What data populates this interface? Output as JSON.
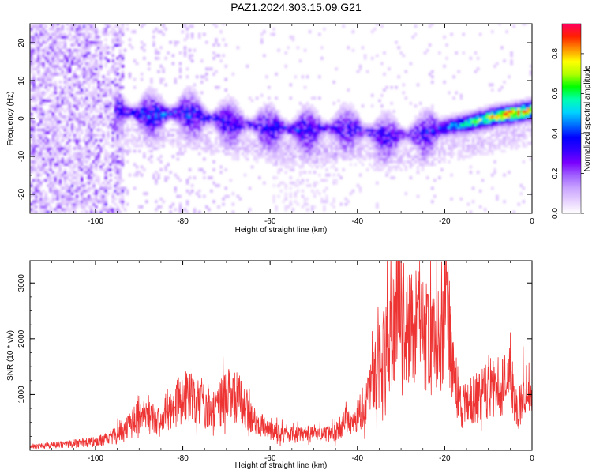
{
  "figure": {
    "title": "PAZ1.2024.303.15.09.G21"
  },
  "chart_data": [
    {
      "type": "heatmap",
      "xlabel": "Height of straight line (km)",
      "ylabel": "Frequency (Hz)",
      "xlim": [
        -115,
        0
      ],
      "ylim": [
        -25,
        25
      ],
      "xticks": [
        -100,
        -80,
        -60,
        -40,
        -20,
        0
      ],
      "yticks": [
        -20,
        -10,
        0,
        10,
        20
      ],
      "colorbar": {
        "label": "Normalized spectral amplitude",
        "range": [
          0,
          0.95
        ],
        "ticks": [
          0.0,
          0.2,
          0.4,
          0.6,
          0.8
        ],
        "colormap": [
          "#ffffff",
          "#e6d0ff",
          "#c9a4ff",
          "#a060ff",
          "#7a00ff",
          "#3300ff",
          "#0000ff",
          "#0070ff",
          "#00d4ff",
          "#00ffb0",
          "#00ff00",
          "#b0ff00",
          "#ffff00",
          "#ff9000",
          "#ff2000",
          "#ff0060"
        ]
      },
      "ridge": {
        "x": [
          -95,
          -90,
          -85,
          -80,
          -75,
          -70,
          -65,
          -60,
          -55,
          -50,
          -45,
          -40,
          -35,
          -30,
          -25,
          -20,
          -15,
          -10,
          -5,
          0
        ],
        "freq": [
          2,
          1,
          1,
          1.5,
          0,
          -1,
          -2,
          -2.5,
          -3,
          -3,
          -2.5,
          -3,
          -5,
          -4.5,
          -4,
          -2.5,
          -1.5,
          0,
          1,
          2
        ],
        "amplitude": [
          0.3,
          0.35,
          0.38,
          0.35,
          0.33,
          0.3,
          0.28,
          0.3,
          0.35,
          0.3,
          0.28,
          0.3,
          0.32,
          0.25,
          0.3,
          0.4,
          0.55,
          0.7,
          0.85,
          0.8
        ]
      }
    },
    {
      "type": "line",
      "xlabel": "Height of straight line (km)",
      "ylabel": "SNR (10 * v/v)",
      "xlim": [
        -115,
        0
      ],
      "ylim": [
        0,
        3400
      ],
      "xticks": [
        -100,
        -80,
        -60,
        -40,
        -20,
        0
      ],
      "yticks": [
        1000,
        2000,
        3000
      ],
      "color": "#ee3333",
      "series": {
        "x": [
          -115,
          -110,
          -105,
          -100,
          -97,
          -95,
          -93,
          -91,
          -89,
          -87,
          -85,
          -83,
          -81,
          -79,
          -77,
          -75,
          -73,
          -71,
          -69,
          -67,
          -65,
          -63,
          -61,
          -59,
          -57,
          -55,
          -53,
          -51,
          -49,
          -47,
          -45,
          -43,
          -41,
          -39,
          -37,
          -35,
          -33,
          -31,
          -30,
          -29,
          -27,
          -25,
          -23,
          -21,
          -19.5,
          -18,
          -16,
          -14,
          -12,
          -10,
          -8,
          -6,
          -5,
          -4,
          -3,
          -2,
          -1,
          0
        ],
        "y": [
          70,
          90,
          120,
          150,
          200,
          280,
          380,
          500,
          560,
          500,
          450,
          600,
          800,
          880,
          820,
          700,
          650,
          800,
          900,
          820,
          600,
          450,
          350,
          300,
          280,
          260,
          250,
          280,
          260,
          270,
          300,
          420,
          500,
          650,
          900,
          1300,
          1700,
          2000,
          2400,
          1800,
          2000,
          1900,
          1600,
          1700,
          2200,
          1200,
          700,
          800,
          900,
          950,
          1000,
          1050,
          1300,
          700,
          600,
          900,
          1000,
          900
        ],
        "peak_annotations": [
          {
            "x": -30,
            "y": 3400
          },
          {
            "x": -19.5,
            "y": 3200
          },
          {
            "x": -24,
            "y": 2800
          }
        ]
      }
    }
  ]
}
